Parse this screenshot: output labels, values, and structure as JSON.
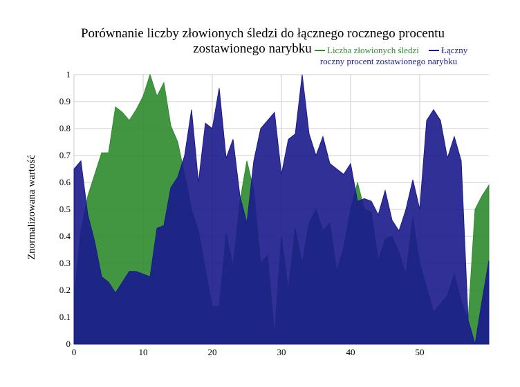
{
  "chart_data": {
    "type": "area",
    "title_lines": [
      "Porównanie liczby złowionych śledzi do łącznego rocznego procentu",
      "zostawionego narybku"
    ],
    "xlabel": "",
    "ylabel": "Znormalizowana wartość",
    "xlim": [
      0,
      60
    ],
    "ylim": [
      0,
      1
    ],
    "x_ticks": [
      0,
      10,
      20,
      30,
      40,
      50
    ],
    "y_ticks": [
      0,
      0.1,
      0.2,
      0.3,
      0.4,
      0.5,
      0.6,
      0.7,
      0.8,
      0.9,
      1
    ],
    "y_tick_labels": [
      "0",
      "0.1",
      "0.2",
      "0.3",
      "0.4",
      "0.5",
      "0.6",
      "0.7",
      "0.8",
      "0.9",
      "1"
    ],
    "grid": true,
    "legend_position": "top-right",
    "legend_lines": [
      "Liczba złowionych śledzi",
      "Łączny",
      "roczny procent zostawionego narybku"
    ],
    "x": [
      0,
      1,
      2,
      3,
      4,
      5,
      6,
      7,
      8,
      9,
      10,
      11,
      12,
      13,
      14,
      15,
      16,
      17,
      18,
      19,
      20,
      21,
      22,
      23,
      24,
      25,
      26,
      27,
      28,
      29,
      30,
      31,
      32,
      33,
      34,
      35,
      36,
      37,
      38,
      39,
      40,
      41,
      42,
      43,
      44,
      45,
      46,
      47,
      48,
      49,
      50,
      51,
      52,
      53,
      54,
      55,
      56,
      57,
      58,
      59,
      60
    ],
    "series": [
      {
        "name": "Liczba złowionych śledzi",
        "color": "#2e8b2e",
        "values": [
          0.17,
          0.42,
          0.55,
          0.63,
          0.71,
          0.71,
          0.88,
          0.86,
          0.83,
          0.87,
          0.92,
          1.0,
          0.92,
          0.97,
          0.81,
          0.75,
          0.63,
          0.5,
          0.42,
          0.28,
          0.14,
          0.14,
          0.41,
          0.29,
          0.53,
          0.68,
          0.57,
          0.3,
          0.33,
          0.03,
          0.4,
          0.2,
          0.43,
          0.3,
          0.45,
          0.5,
          0.42,
          0.45,
          0.27,
          0.36,
          0.5,
          0.6,
          0.5,
          0.49,
          0.31,
          0.39,
          0.4,
          0.34,
          0.26,
          0.47,
          0.3,
          0.21,
          0.12,
          0.15,
          0.18,
          0.26,
          0.16,
          0.09,
          0.5,
          0.55,
          0.59
        ]
      },
      {
        "name": "Łączny roczny procent zostawionego narybku",
        "color": "#1a1a8c",
        "values": [
          0.65,
          0.68,
          0.48,
          0.38,
          0.25,
          0.23,
          0.19,
          0.23,
          0.27,
          0.27,
          0.26,
          0.25,
          0.43,
          0.44,
          0.58,
          0.62,
          0.7,
          0.87,
          0.6,
          0.82,
          0.8,
          0.95,
          0.69,
          0.76,
          0.55,
          0.45,
          0.68,
          0.8,
          0.83,
          0.86,
          0.63,
          0.76,
          0.78,
          1.0,
          0.78,
          0.7,
          0.77,
          0.67,
          0.65,
          0.63,
          0.67,
          0.53,
          0.54,
          0.53,
          0.48,
          0.57,
          0.46,
          0.42,
          0.5,
          0.61,
          0.5,
          0.83,
          0.87,
          0.83,
          0.69,
          0.77,
          0.68,
          0.09,
          0.0,
          0.16,
          0.31
        ]
      }
    ]
  }
}
